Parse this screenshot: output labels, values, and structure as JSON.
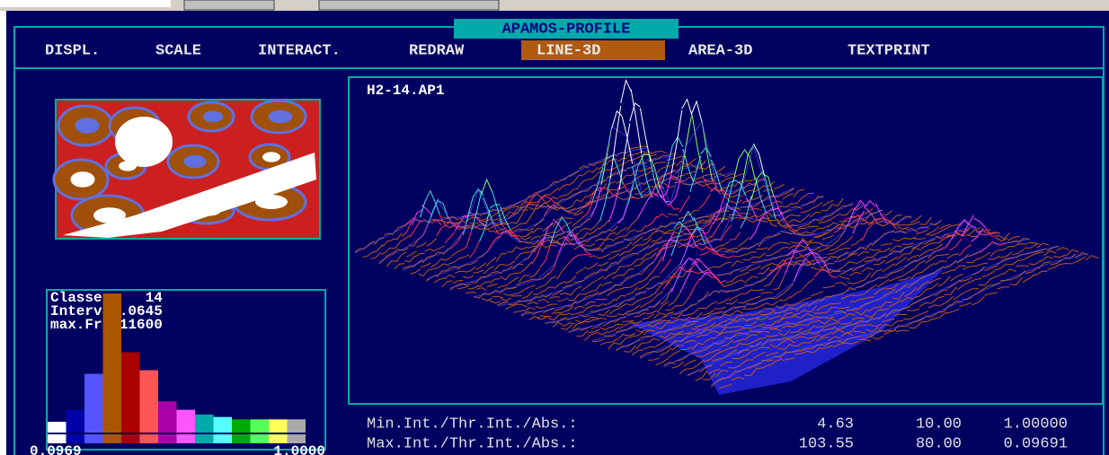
{
  "window": {
    "title": "APAMOS-PROFILE"
  },
  "menu": {
    "items": [
      "DISPL.",
      "SCALE",
      "INTERACT.",
      "REDRAW",
      "LINE-3D",
      "AREA-3D",
      "TEXTPRINT"
    ],
    "active_index": 4
  },
  "plot": {
    "filename": "H2-14.AP1"
  },
  "histogram": {
    "lines": [
      "Classes:   14",
      "Interv 0.0645",
      "max.Fr.:11600"
    ],
    "xlabels": [
      "0.0969",
      "1.0000"
    ],
    "ylim": [
      0,
      11600
    ],
    "values": [
      900,
      1900,
      4900,
      11600,
      6700,
      5200,
      2600,
      1900,
      1500,
      1300,
      1100,
      1100,
      1100,
      1100
    ],
    "colors": [
      "#ffffff",
      "#0000aa",
      "#5555ff",
      "#aa5500",
      "#aa0000",
      "#ff5555",
      "#aa00aa",
      "#ff55ff",
      "#00aaaa",
      "#55ffff",
      "#00aa00",
      "#55ff55",
      "#ffff55",
      "#aaaaaa"
    ]
  },
  "stats": {
    "rows": [
      {
        "label": "Min.Int./Thr.Int./Abs.:",
        "values": [
          "4.63",
          "10.00",
          "1.00000"
        ]
      },
      {
        "label": "Max.Int./Thr.Int./Abs.:",
        "values": [
          "103.55",
          "80.00",
          "0.09691"
        ]
      }
    ]
  }
}
